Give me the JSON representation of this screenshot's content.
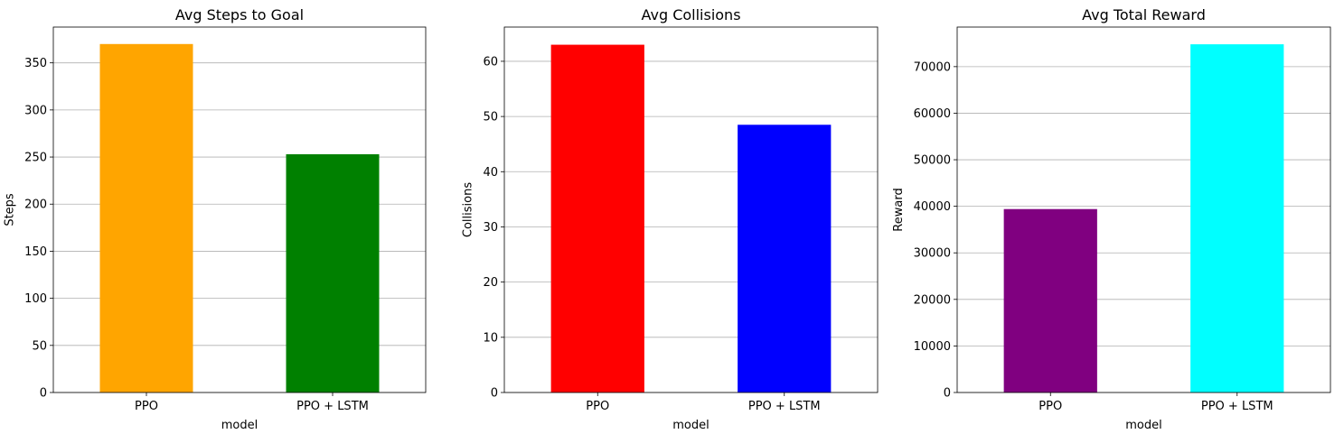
{
  "chart_data": [
    {
      "type": "bar",
      "title": "Avg Steps to Goal",
      "xlabel": "model",
      "ylabel": "Steps",
      "categories": [
        "PPO",
        "PPO + LSTM"
      ],
      "values": [
        370,
        253
      ],
      "colors": [
        "#ffa500",
        "#008000"
      ],
      "ylim": [
        0,
        388
      ],
      "yticks": [
        0,
        50,
        100,
        150,
        200,
        250,
        300,
        350
      ],
      "grid": "y"
    },
    {
      "type": "bar",
      "title": "Avg Collisions",
      "xlabel": "model",
      "ylabel": "Collisions",
      "categories": [
        "PPO",
        "PPO + LSTM"
      ],
      "values": [
        63,
        48.5
      ],
      "colors": [
        "#ff0000",
        "#0000ff"
      ],
      "ylim": [
        0,
        66.2
      ],
      "yticks": [
        0,
        10,
        20,
        30,
        40,
        50,
        60
      ],
      "grid": "y"
    },
    {
      "type": "bar",
      "title": "Avg Total Reward",
      "xlabel": "model",
      "ylabel": "Reward",
      "categories": [
        "PPO",
        "PPO + LSTM"
      ],
      "values": [
        39400,
        74800
      ],
      "colors": [
        "#800080",
        "#00ffff"
      ],
      "ylim": [
        0,
        78500
      ],
      "yticks": [
        0,
        10000,
        20000,
        30000,
        40000,
        50000,
        60000,
        70000
      ],
      "grid": "y"
    }
  ]
}
